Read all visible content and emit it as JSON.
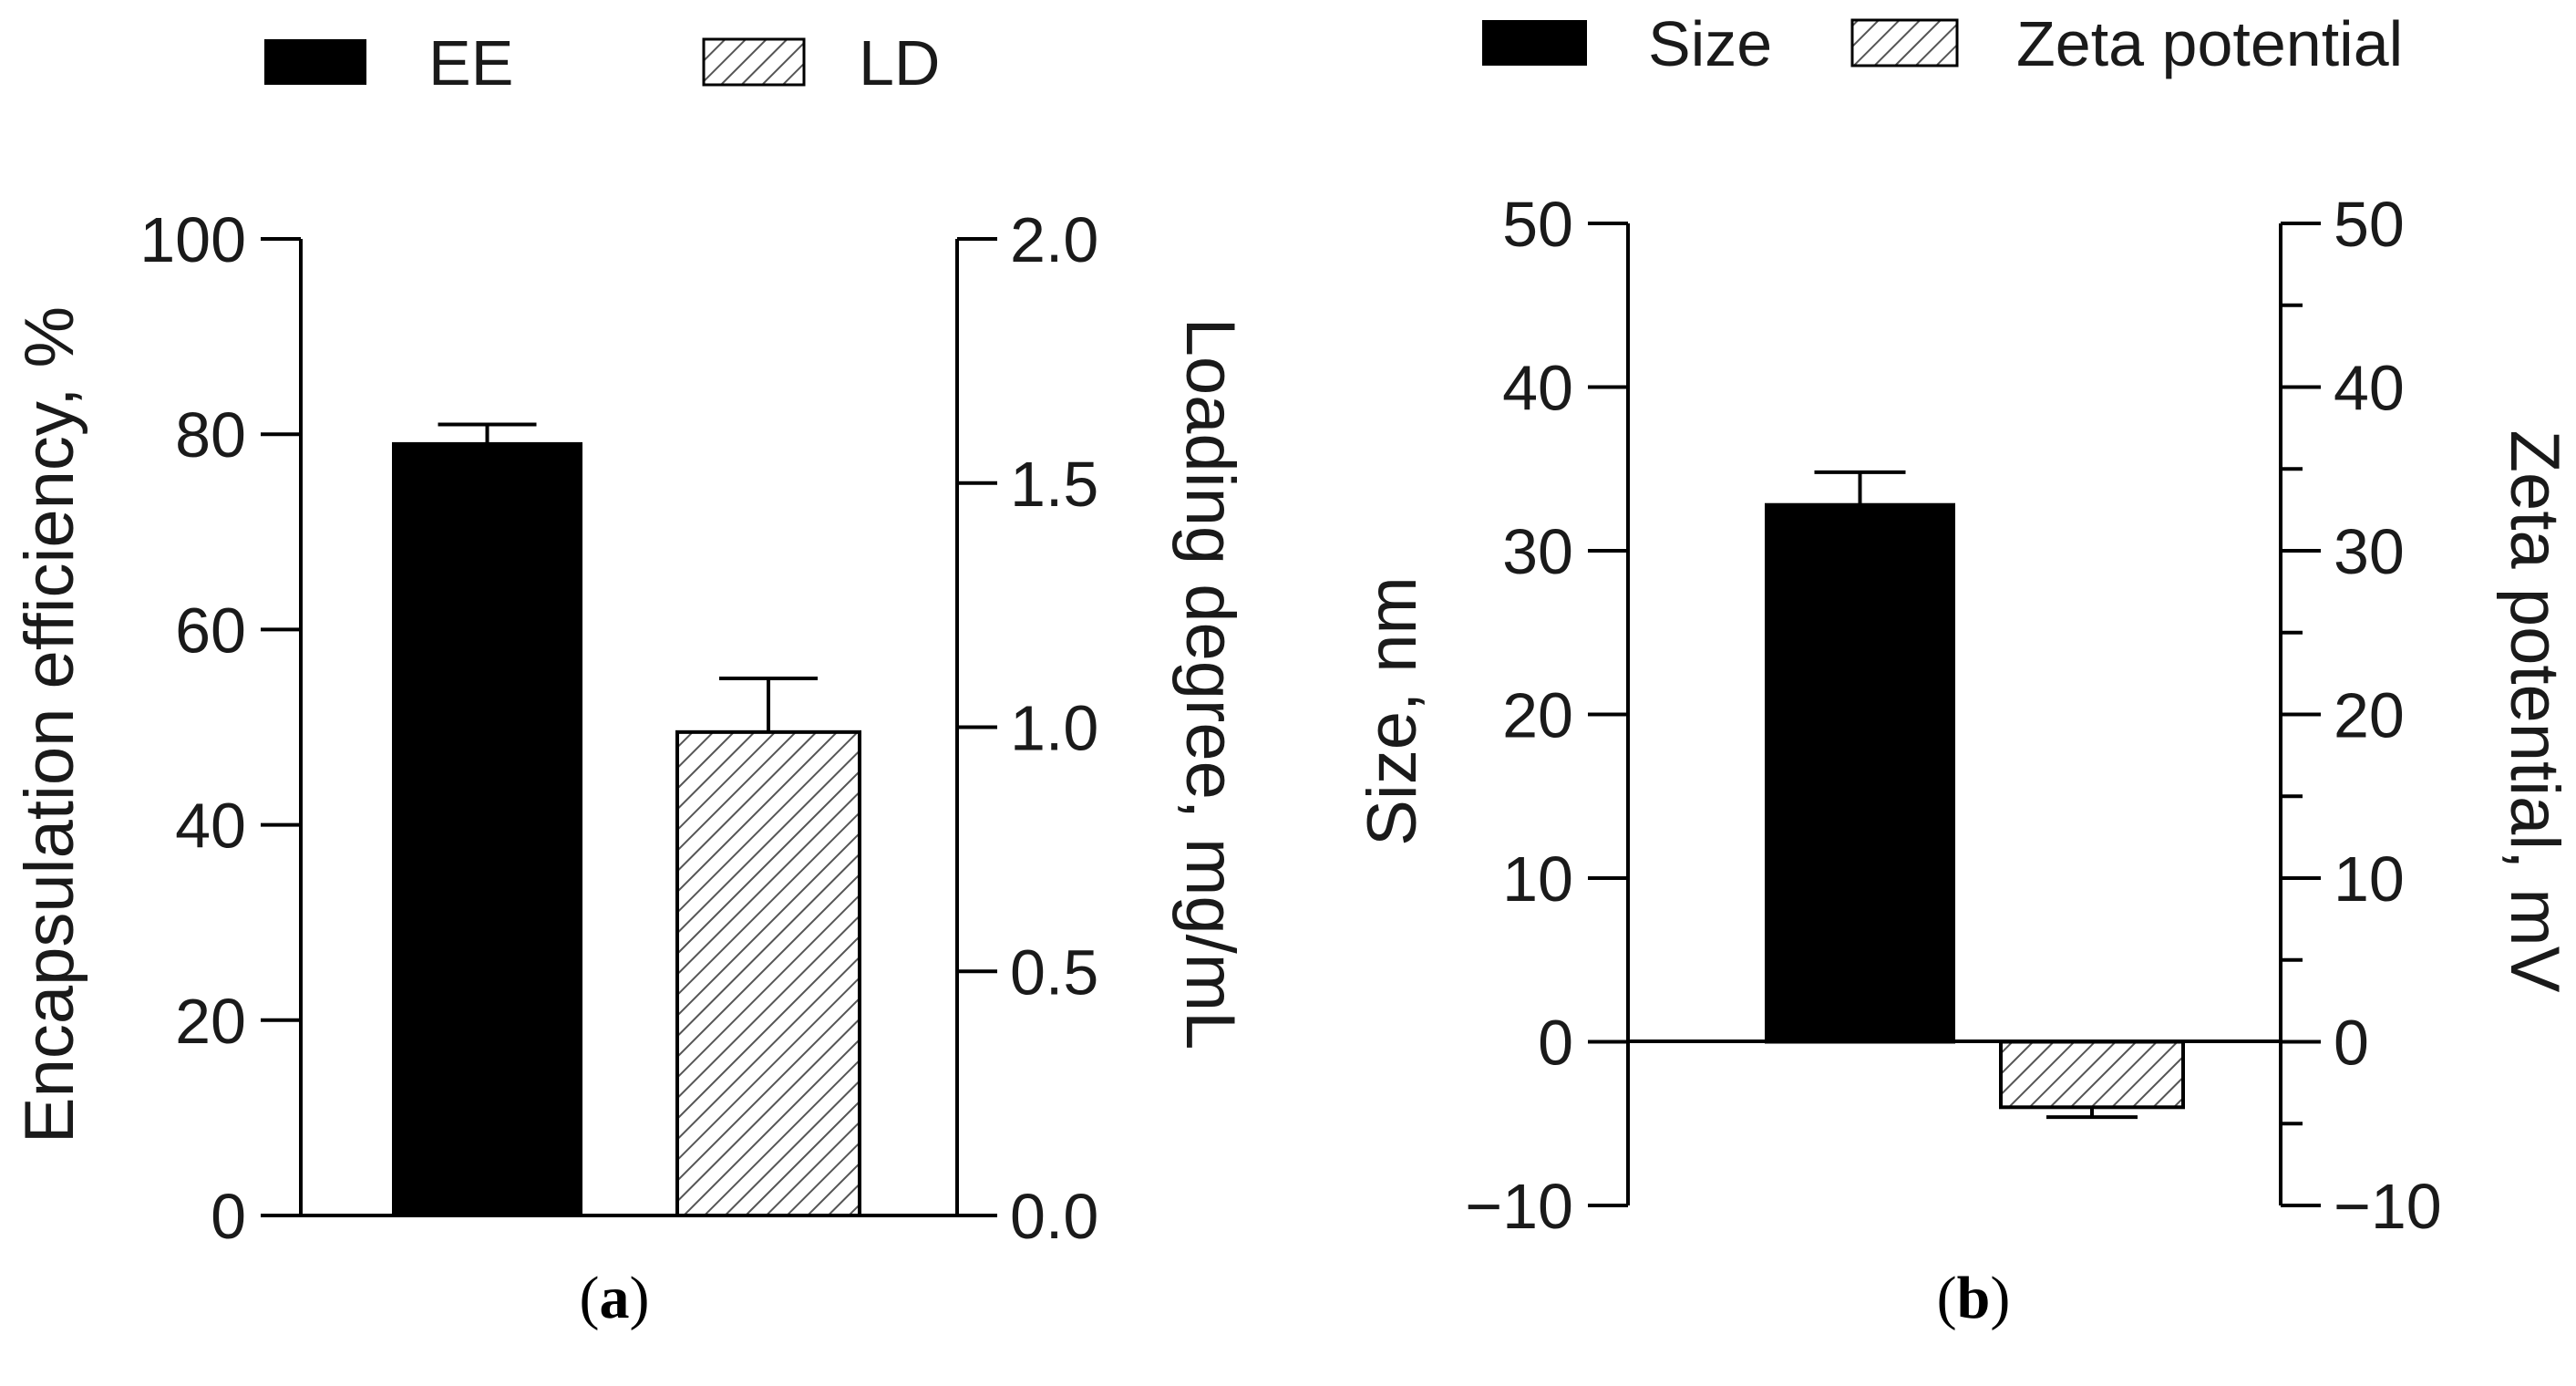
{
  "chart_data": [
    {
      "type": "bar",
      "panel_caption": "a",
      "legend": [
        {
          "label": "EE",
          "pattern": "solid"
        },
        {
          "label": "LD",
          "pattern": "hatched"
        }
      ],
      "left_axis": {
        "title": "Encapsulation efficiency, %",
        "ylim": [
          0,
          100
        ],
        "ticks": [
          "0",
          "20",
          "40",
          "60",
          "80",
          "100"
        ]
      },
      "right_axis": {
        "title": "Loading degree, mg/mL",
        "ylim": [
          0.0,
          2.0
        ],
        "ticks": [
          "0.0",
          "0.5",
          "1.0",
          "1.5",
          "2.0"
        ]
      },
      "bars": [
        {
          "name": "EE",
          "axis": "left",
          "value": 79,
          "error": 2,
          "pattern": "solid"
        },
        {
          "name": "LD",
          "axis": "right",
          "value": 0.99,
          "error": 0.11,
          "pattern": "hatched"
        }
      ]
    },
    {
      "type": "bar",
      "panel_caption": "b",
      "legend": [
        {
          "label": "Size",
          "pattern": "solid"
        },
        {
          "label": "Zeta potential",
          "pattern": "hatched"
        }
      ],
      "left_axis": {
        "title": "Size, nm",
        "ylim": [
          -10,
          50
        ],
        "ticks": [
          "−10",
          "0",
          "10",
          "20",
          "30",
          "40",
          "50"
        ]
      },
      "right_axis": {
        "title": "Zeta potential, mV",
        "ylim": [
          -10,
          50
        ],
        "ticks": [
          "−10",
          "0",
          "10",
          "20",
          "30",
          "40",
          "50"
        ]
      },
      "bars": [
        {
          "name": "Size",
          "axis": "left",
          "value": 32.8,
          "error": 2.0,
          "pattern": "solid"
        },
        {
          "name": "Zeta potential",
          "axis": "right",
          "value": -4.0,
          "error": 0.6,
          "pattern": "hatched"
        }
      ]
    }
  ],
  "colors": {
    "solid": "#000000",
    "hatch": "#555555",
    "axis": "#000000"
  }
}
